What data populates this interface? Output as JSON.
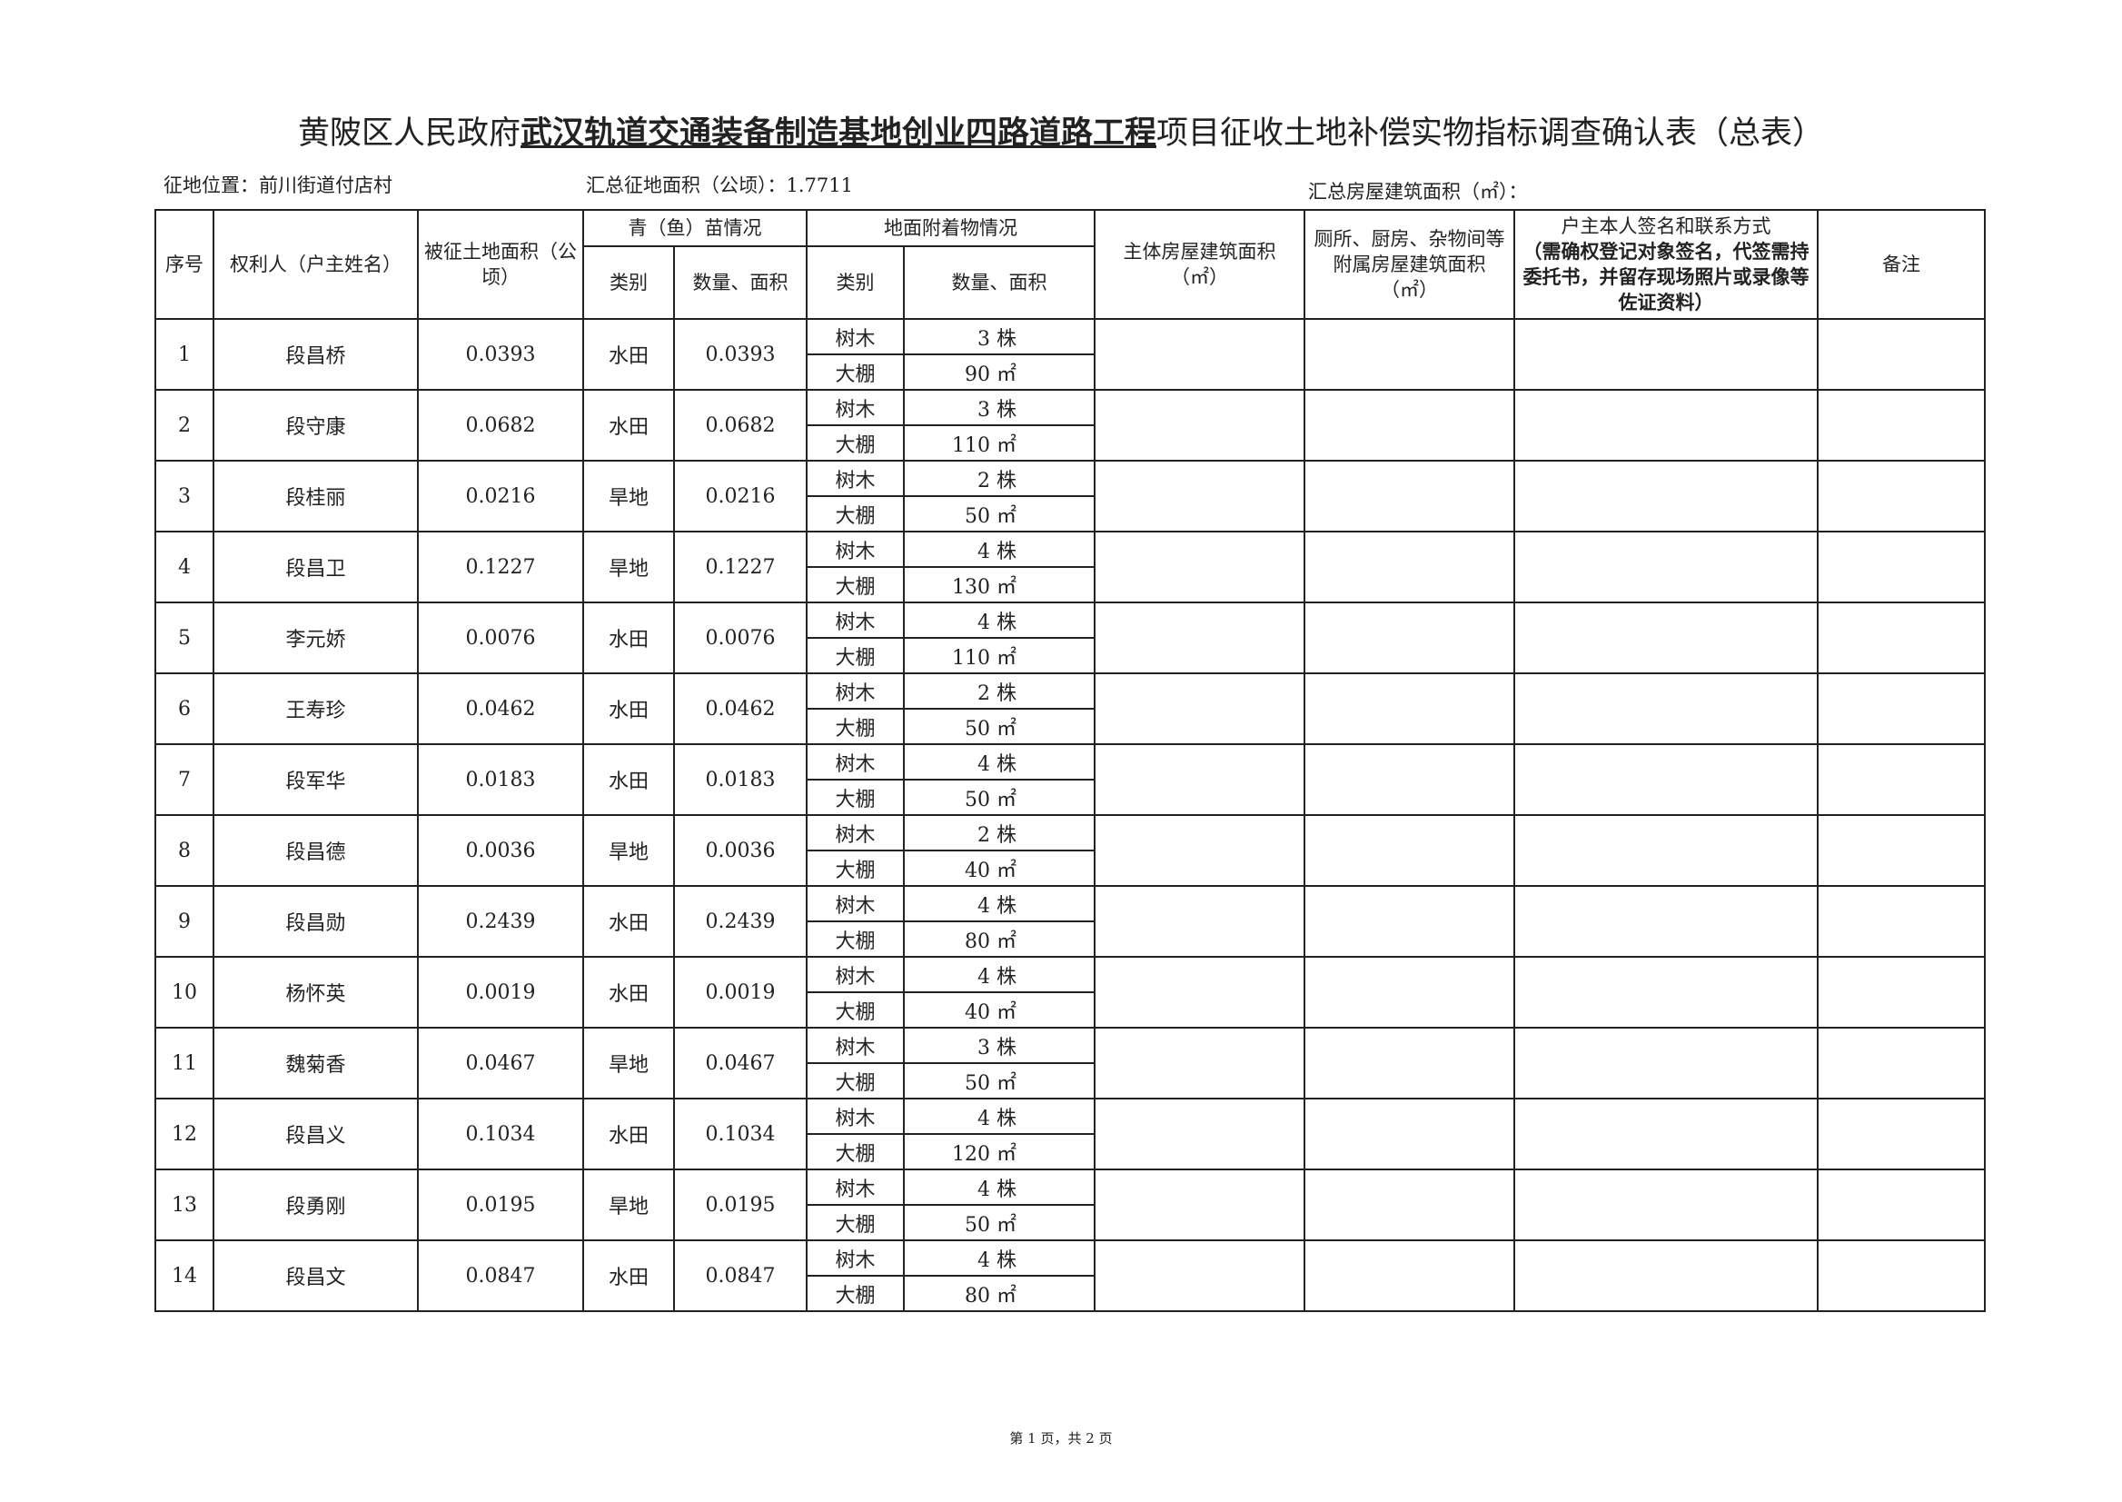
{
  "title": {
    "prefix": "黄陂区人民政府",
    "project": "武汉轨道交通装备制造基地创业四路道路工程",
    "suffix": "项目征收土地补偿实物指标调查确认表（总表）"
  },
  "meta": {
    "location": "征地位置：前川街道付店村",
    "total_area": "汇总征地面积（公顷）：1.7711",
    "total_building": "汇总房屋建筑面积（㎡）："
  },
  "headers": {
    "seq": "序号",
    "owner": "权利人（户主姓名）",
    "land_area": "被征土地面积（公顷）",
    "crop": "青（鱼）苗情况",
    "crop_type": "类别",
    "crop_qty": "数量、面积",
    "attach": "地面附着物情况",
    "attach_type": "类别",
    "attach_qty": "数量、面积",
    "main_house": "主体房屋建筑面积（㎡）",
    "aux_house": "厕所、厨房、杂物间等附属房屋建筑面积（㎡）",
    "sign": "户主本人签名和联系方式",
    "sign_note": "（需确权登记对象签名，代签需持委托书，并留存现场照片或录像等佐证资料）",
    "remark": "备注"
  },
  "rows": [
    {
      "seq": "1",
      "owner": "段昌桥",
      "area": "0.0393",
      "crop_type": "水田",
      "crop_qty": "0.0393",
      "tree_label": "树木",
      "tree": "3 株",
      "shed_label": "大棚",
      "shed": "90 ㎡"
    },
    {
      "seq": "2",
      "owner": "段守康",
      "area": "0.0682",
      "crop_type": "水田",
      "crop_qty": "0.0682",
      "tree_label": "树木",
      "tree": "3 株",
      "shed_label": "大棚",
      "shed": "110 ㎡"
    },
    {
      "seq": "3",
      "owner": "段桂丽",
      "area": "0.0216",
      "crop_type": "旱地",
      "crop_qty": "0.0216",
      "tree_label": "树木",
      "tree": "2 株",
      "shed_label": "大棚",
      "shed": "50 ㎡"
    },
    {
      "seq": "4",
      "owner": "段昌卫",
      "area": "0.1227",
      "crop_type": "旱地",
      "crop_qty": "0.1227",
      "tree_label": "树木",
      "tree": "4 株",
      "shed_label": "大棚",
      "shed": "130 ㎡"
    },
    {
      "seq": "5",
      "owner": "李元娇",
      "area": "0.0076",
      "crop_type": "水田",
      "crop_qty": "0.0076",
      "tree_label": "树木",
      "tree": "4 株",
      "shed_label": "大棚",
      "shed": "110 ㎡"
    },
    {
      "seq": "6",
      "owner": "王寿珍",
      "area": "0.0462",
      "crop_type": "水田",
      "crop_qty": "0.0462",
      "tree_label": "树木",
      "tree": "2 株",
      "shed_label": "大棚",
      "shed": "50 ㎡"
    },
    {
      "seq": "7",
      "owner": "段军华",
      "area": "0.0183",
      "crop_type": "水田",
      "crop_qty": "0.0183",
      "tree_label": "树木",
      "tree": "4 株",
      "shed_label": "大棚",
      "shed": "50 ㎡"
    },
    {
      "seq": "8",
      "owner": "段昌德",
      "area": "0.0036",
      "crop_type": "旱地",
      "crop_qty": "0.0036",
      "tree_label": "树木",
      "tree": "2 株",
      "shed_label": "大棚",
      "shed": "40 ㎡"
    },
    {
      "seq": "9",
      "owner": "段昌勋",
      "area": "0.2439",
      "crop_type": "水田",
      "crop_qty": "0.2439",
      "tree_label": "树木",
      "tree": "4 株",
      "shed_label": "大棚",
      "shed": "80 ㎡"
    },
    {
      "seq": "10",
      "owner": "杨怀英",
      "area": "0.0019",
      "crop_type": "水田",
      "crop_qty": "0.0019",
      "tree_label": "树木",
      "tree": "4 株",
      "shed_label": "大棚",
      "shed": "40 ㎡"
    },
    {
      "seq": "11",
      "owner": "魏菊香",
      "area": "0.0467",
      "crop_type": "旱地",
      "crop_qty": "0.0467",
      "tree_label": "树木",
      "tree": "3 株",
      "shed_label": "大棚",
      "shed": "50 ㎡"
    },
    {
      "seq": "12",
      "owner": "段昌义",
      "area": "0.1034",
      "crop_type": "水田",
      "crop_qty": "0.1034",
      "tree_label": "树木",
      "tree": "4 株",
      "shed_label": "大棚",
      "shed": "120 ㎡"
    },
    {
      "seq": "13",
      "owner": "段勇刚",
      "area": "0.0195",
      "crop_type": "旱地",
      "crop_qty": "0.0195",
      "tree_label": "树木",
      "tree": "4 株",
      "shed_label": "大棚",
      "shed": "50 ㎡"
    },
    {
      "seq": "14",
      "owner": "段昌文",
      "area": "0.0847",
      "crop_type": "水田",
      "crop_qty": "0.0847",
      "tree_label": "树木",
      "tree": "4 株",
      "shed_label": "大棚",
      "shed": "80 ㎡"
    }
  ],
  "footer": "第 1 页，共 2 页"
}
